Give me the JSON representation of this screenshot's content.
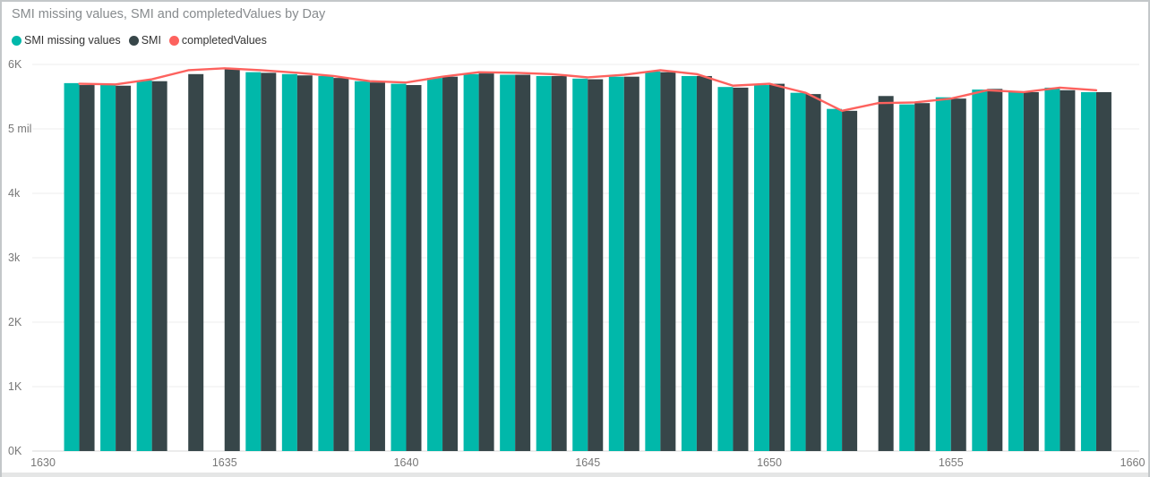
{
  "chart_data": {
    "type": "combo",
    "title": "SMI missing values, SMI and completedValues by Day",
    "x_axis_field": "Day",
    "x": [
      1631,
      1632,
      1633,
      1634,
      1635,
      1636,
      1637,
      1638,
      1639,
      1640,
      1641,
      1642,
      1643,
      1644,
      1645,
      1646,
      1647,
      1648,
      1649,
      1650,
      1651,
      1652,
      1653,
      1654,
      1655,
      1656,
      1657,
      1658,
      1659
    ],
    "series": [
      {
        "name": "SMI missing values",
        "type": "bar",
        "color": "#01B8AA",
        "values": [
          5710,
          5690,
          5750,
          null,
          null,
          5880,
          5850,
          5820,
          5740,
          5700,
          5790,
          5850,
          5840,
          5820,
          5780,
          5810,
          5890,
          5820,
          5650,
          5680,
          5560,
          5310,
          null,
          5380,
          5490,
          5610,
          5580,
          5640,
          5570
        ]
      },
      {
        "name": "SMI",
        "type": "bar",
        "color": "#374649",
        "values": [
          5680,
          5670,
          5740,
          5850,
          5940,
          5870,
          5830,
          5790,
          5720,
          5680,
          5810,
          5860,
          5840,
          5820,
          5770,
          5810,
          5880,
          5820,
          5640,
          5700,
          5540,
          5280,
          5510,
          5400,
          5470,
          5620,
          5570,
          5600,
          5570
        ]
      },
      {
        "name": "completedValues",
        "type": "line",
        "color": "#FD625E",
        "values": [
          5700,
          5690,
          5770,
          5910,
          5940,
          5910,
          5870,
          5820,
          5740,
          5720,
          5810,
          5880,
          5870,
          5850,
          5800,
          5840,
          5910,
          5850,
          5670,
          5700,
          5560,
          5280,
          5400,
          5410,
          5470,
          5600,
          5570,
          5640,
          5600
        ]
      }
    ],
    "x_ticks": [
      1630,
      1635,
      1640,
      1645,
      1650,
      1655,
      1660
    ],
    "y_ticks_bottom_to_top": [
      "0K",
      "1K",
      "2K",
      "3k",
      "4k",
      "5 mil",
      "6K"
    ],
    "ylim": [
      0,
      6000
    ],
    "grid": true,
    "legend_position": "top-left"
  },
  "colors": {
    "title_text": "#878b8e",
    "legend_text": "#333333",
    "axis_text": "#777777",
    "gridline": "#ececec",
    "axis_line": "#d9d9d9",
    "background": "#ffffff",
    "frame_border": "#c3c7c9"
  }
}
